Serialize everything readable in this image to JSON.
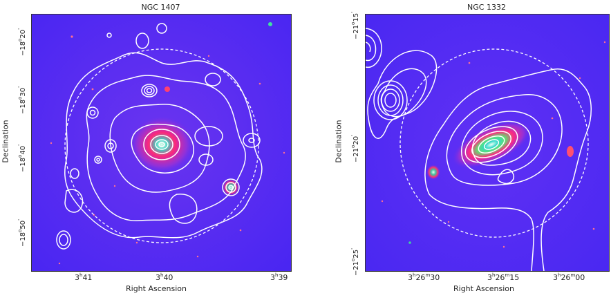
{
  "panels": [
    {
      "title": "NGC 1407",
      "ylabel": "Declination",
      "xlabel": "Right Ascension",
      "yticks": [
        {
          "deg": "−18",
          "min": "20"
        },
        {
          "deg": "−18",
          "min": "30"
        },
        {
          "deg": "−18",
          "min": "40"
        },
        {
          "deg": "−18",
          "min": "50"
        }
      ],
      "xticks": [
        {
          "h": "3",
          "m": "41"
        },
        {
          "h": "3",
          "m": "40"
        },
        {
          "h": "3",
          "m": "39"
        }
      ]
    },
    {
      "title": "NGC 1332",
      "ylabel": "Declination",
      "xlabel": "Right Ascension",
      "yticks": [
        {
          "deg": "−21",
          "min": "15"
        },
        {
          "deg": "−21",
          "min": "20"
        },
        {
          "deg": "−21",
          "min": "25"
        }
      ],
      "xticks": [
        {
          "h": "3",
          "m": "26",
          "s": "30"
        },
        {
          "h": "3",
          "m": "26",
          "s": "15"
        },
        {
          "h": "3",
          "m": "26",
          "s": "00"
        }
      ]
    }
  ],
  "colors": {
    "sky": "#5a2df5",
    "contour": "#ffffff",
    "galaxy_core": "#c8ffd0",
    "galaxy_halo": "#ff2080"
  }
}
